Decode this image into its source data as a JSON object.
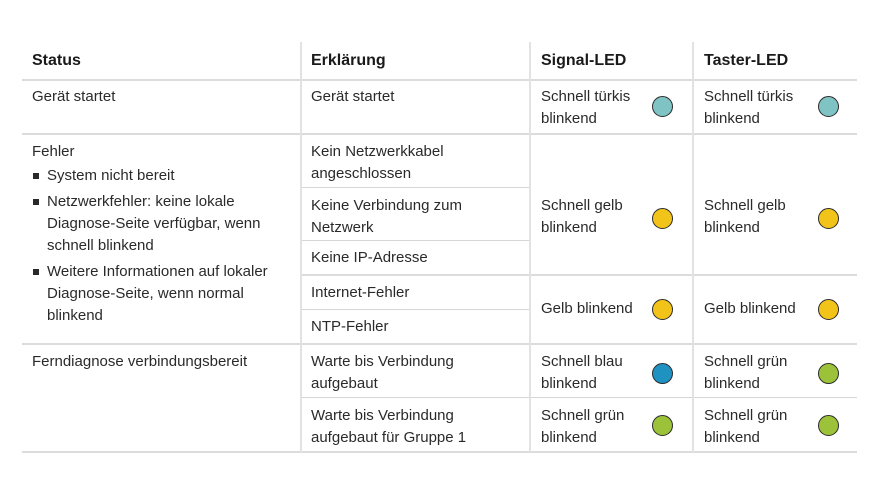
{
  "headers": {
    "status": "Status",
    "erklaerung": "Erklärung",
    "signal_led": "Signal-LED",
    "taster_led": "Taster-LED"
  },
  "colors": {
    "tuerkis": "#7fc3c4",
    "gelb": "#f2c419",
    "blau": "#1f92c2",
    "gruen": "#9cc23a"
  },
  "rows": {
    "start": {
      "status": "Gerät startet",
      "erklaerung": "Gerät startet",
      "signal": "Schnell türkis blinkend",
      "taster": "Schnell türkis blinkend"
    },
    "fehler": {
      "status": "Fehler",
      "bullets": [
        "System nicht bereit",
        "Netzwerkfehler: keine lokale Diagnose-Seite verfügbar, wenn schnell blinkend",
        "Weitere Informationen auf lokaler Diagnose-Seite, wenn normal blinkend"
      ],
      "erklaerungen": [
        "Kein Netzwerkkabel angeschlossen",
        "Keine Verbindung zum Netzwerk",
        "Keine IP-Adresse",
        "Internet-Fehler",
        "NTP-Fehler"
      ],
      "signal_schnell": "Schnell gelb blinkend",
      "taster_schnell": "Schnell gelb blinkend",
      "signal_normal": "Gelb blinkend",
      "taster_normal": "Gelb blinkend"
    },
    "fern": {
      "status": "Ferndiagnose verbindungsbereit",
      "erklaerungen": [
        "Warte bis Verbindung aufgebaut",
        "Warte bis Verbindung aufgebaut für Gruppe 1"
      ],
      "signal_1": "Schnell blau blinkend",
      "taster_1": "Schnell grün blinkend",
      "signal_2": "Schnell grün blinkend",
      "taster_2": "Schnell grün blinkend"
    }
  }
}
